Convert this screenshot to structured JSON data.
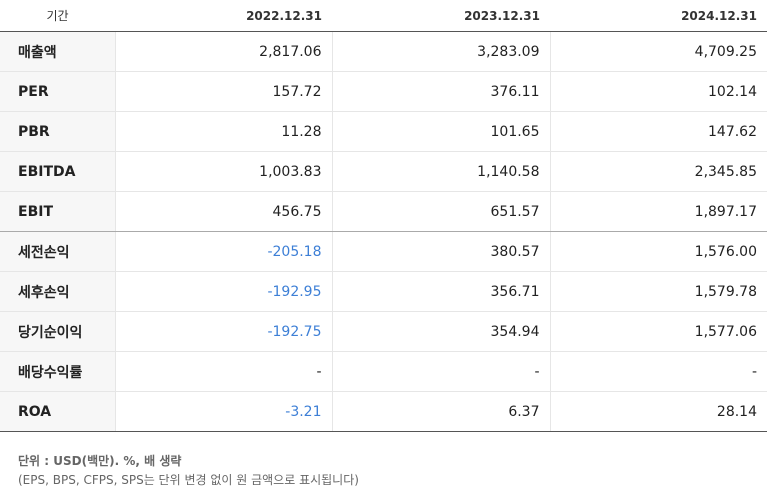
{
  "table": {
    "header": [
      "기간",
      "2022.12.31",
      "2023.12.31",
      "2024.12.31"
    ],
    "rows": [
      [
        "매출액",
        "2,817.06",
        "3,283.09",
        "4,709.25"
      ],
      [
        "PER",
        "157.72",
        "376.11",
        "102.14"
      ],
      [
        "PBR",
        "11.28",
        "101.65",
        "147.62"
      ],
      [
        "EBITDA",
        "1,003.83",
        "1,140.58",
        "2,345.85"
      ],
      [
        "EBIT",
        "456.75",
        "651.57",
        "1,897.17"
      ],
      [
        "세전손익",
        "-205.18",
        "380.57",
        "1,576.00"
      ],
      [
        "세후손익",
        "-192.95",
        "356.71",
        "1,579.78"
      ],
      [
        "당기순이익",
        "-192.75",
        "354.94",
        "1,577.06"
      ],
      [
        "배당수익률",
        "-",
        "-",
        "-"
      ],
      [
        "ROA",
        "-3.21",
        "6.37",
        "28.14"
      ]
    ]
  },
  "footer": [
    "단위 : USD(백만). %, 배 생략",
    "(EPS, BPS, CFPS, SPS는 단위 변경 없이 원 금액으로 표시됩니다)"
  ]
}
